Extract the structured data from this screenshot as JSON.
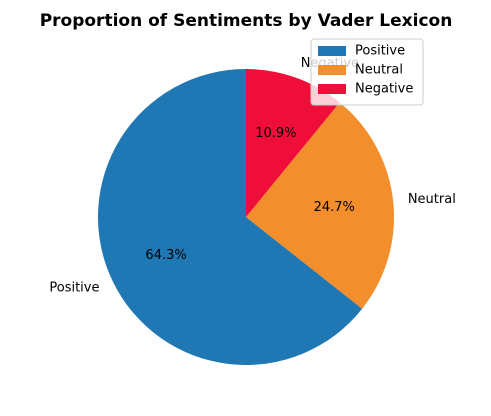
{
  "chart_data": {
    "type": "pie",
    "title": "Proportion of Sentiments by Vader Lexicon",
    "categories": [
      "Positive",
      "Neutral",
      "Negative"
    ],
    "values": [
      64.3,
      24.7,
      10.9
    ],
    "percent_labels": [
      "64.3%",
      "24.7%",
      "10.9%"
    ],
    "colors": [
      "#1f77b4",
      "#f28e2b",
      "#ef0d3a"
    ],
    "start_angle_deg": 90,
    "direction": "counterclockwise",
    "legend": {
      "placement": "top-right",
      "entries": [
        "Positive",
        "Neutral",
        "Negative"
      ]
    }
  }
}
